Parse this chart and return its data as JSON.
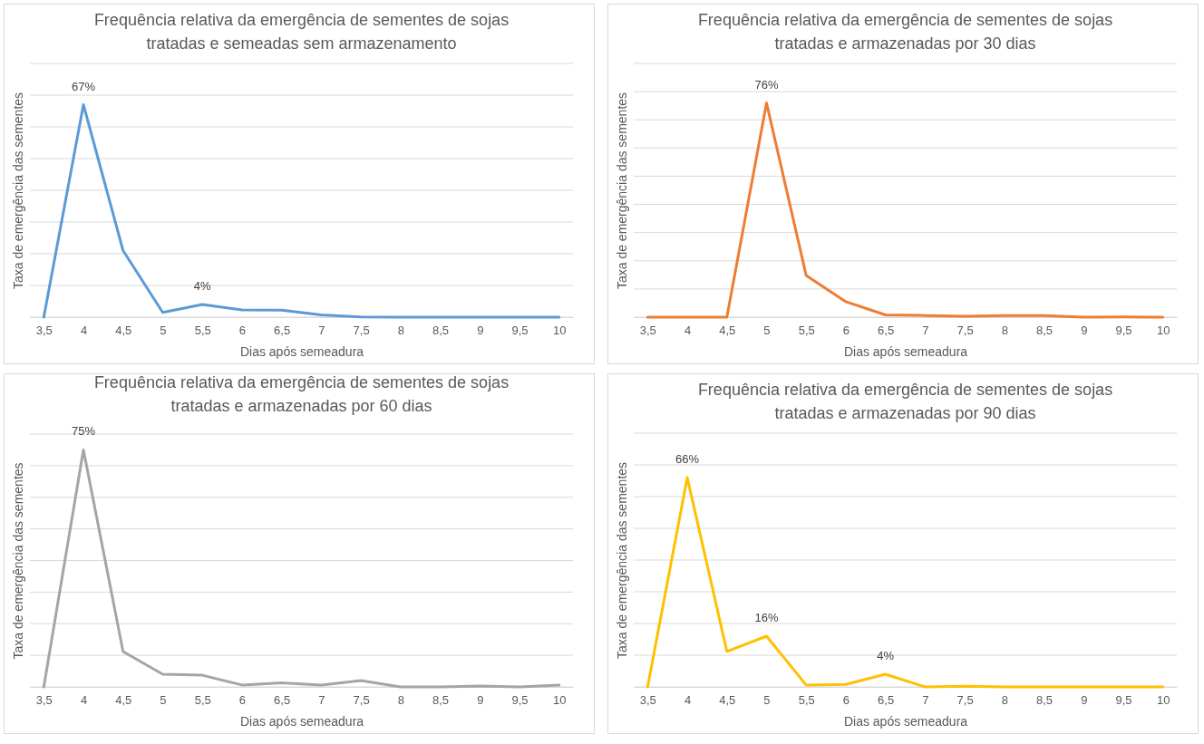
{
  "chart_data": [
    {
      "type": "line",
      "title": "Frequência relativa da emergência de sementes de sojas\ntratadas e semeadas sem armazenamento",
      "xlabel": "Dias após semeadura",
      "ylabel": "Taxa de emergência das sementes",
      "categories": [
        "3,5",
        "4",
        "4,5",
        "5",
        "5,5",
        "6",
        "6,5",
        "7",
        "7,5",
        "8",
        "8,5",
        "9",
        "9,5",
        "10"
      ],
      "ylim": [
        0,
        80
      ],
      "yticks": [
        {
          "value": 0,
          "label": null
        },
        {
          "value": 10,
          "label": null
        },
        {
          "value": 20,
          "label": null
        },
        {
          "value": 30,
          "label": null
        },
        {
          "value": 40,
          "label": null
        },
        {
          "value": 50,
          "label": null
        },
        {
          "value": 60,
          "label": null
        },
        {
          "value": 70,
          "label": null
        },
        {
          "value": 80,
          "label": null
        }
      ],
      "tick_labels": "x",
      "grid": "y",
      "series": [
        {
          "color": "#5b9bd5",
          "values": [
            0,
            67,
            21,
            1.5,
            4,
            2.3,
            2.2,
            0.7,
            0.1,
            0,
            0,
            0,
            0,
            0
          ],
          "value_labels": [
            null,
            "67%",
            null,
            null,
            "4%",
            null,
            null,
            null,
            null,
            null,
            null,
            null,
            null,
            null
          ]
        }
      ]
    },
    {
      "type": "line",
      "title": "Frequência relativa da emergência de sementes de sojas\ntratadas e armazenadas por 30 dias",
      "xlabel": "Dias após semeadura",
      "ylabel": "Taxa de emergência das sementes",
      "categories": [
        "3,5",
        "4",
        "4,5",
        "5",
        "5,5",
        "6",
        "6,5",
        "7",
        "7,5",
        "8",
        "8,5",
        "9",
        "9,5",
        "10"
      ],
      "ylim": [
        0,
        90
      ],
      "yticks": [
        {
          "value": 0,
          "label": null
        },
        {
          "value": 10,
          "label": null
        },
        {
          "value": 20,
          "label": null
        },
        {
          "value": 30,
          "label": null
        },
        {
          "value": 40,
          "label": null
        },
        {
          "value": 50,
          "label": null
        },
        {
          "value": 60,
          "label": null
        },
        {
          "value": 70,
          "label": null
        },
        {
          "value": 80,
          "label": null
        },
        {
          "value": 90,
          "label": null
        }
      ],
      "tick_labels": "x",
      "grid": "y",
      "series": [
        {
          "color": "#ed7d31",
          "values": [
            0,
            0,
            0,
            76,
            14.8,
            5.5,
            0.8,
            0.6,
            0.3,
            0.6,
            0.6,
            0,
            0.1,
            0
          ],
          "value_labels": [
            null,
            null,
            null,
            "76%",
            null,
            null,
            null,
            null,
            null,
            null,
            null,
            null,
            null,
            null
          ]
        }
      ]
    },
    {
      "type": "line",
      "title": "Frequência relativa da emergência de sementes de sojas\ntratadas e armazenadas por 60 dias",
      "xlabel": "Dias após semeadura",
      "ylabel": "Taxa de emergência das sementes",
      "categories": [
        "3,5",
        "4",
        "4,5",
        "5",
        "5,5",
        "6",
        "6,5",
        "7",
        "7,5",
        "8",
        "8,5",
        "9",
        "9,5",
        "10"
      ],
      "ylim": [
        0,
        80
      ],
      "yticks": [
        {
          "value": 0,
          "label": null
        },
        {
          "value": 10,
          "label": null
        },
        {
          "value": 20,
          "label": null
        },
        {
          "value": 30,
          "label": null
        },
        {
          "value": 40,
          "label": null
        },
        {
          "value": 50,
          "label": null
        },
        {
          "value": 60,
          "label": null
        },
        {
          "value": 70,
          "label": null
        },
        {
          "value": 80,
          "label": null
        }
      ],
      "tick_labels": "x",
      "grid": "y",
      "series": [
        {
          "color": "#a5a5a5",
          "values": [
            0,
            75,
            11.2,
            4,
            3.7,
            0.6,
            1.3,
            0.6,
            2,
            0,
            0,
            0.3,
            0,
            0.6
          ],
          "value_labels": [
            null,
            "75%",
            null,
            null,
            null,
            null,
            null,
            null,
            null,
            null,
            null,
            null,
            null,
            null
          ]
        }
      ]
    },
    {
      "type": "line",
      "title": "Frequência relativa da emergência de sementes de sojas\ntratadas e armazenadas por 90 dias",
      "xlabel": "Dias após semeadura",
      "ylabel": "Taxa de emergência das sementes",
      "categories": [
        "3,5",
        "4",
        "4,5",
        "5",
        "5,5",
        "6",
        "6,5",
        "7",
        "7,5",
        "8",
        "8,5",
        "9",
        "9,5",
        "10"
      ],
      "ylim": [
        0,
        80
      ],
      "yticks": [
        {
          "value": 0,
          "label": null
        },
        {
          "value": 10,
          "label": null
        },
        {
          "value": 20,
          "label": null
        },
        {
          "value": 30,
          "label": null
        },
        {
          "value": 40,
          "label": null
        },
        {
          "value": 50,
          "label": null
        },
        {
          "value": 60,
          "label": null
        },
        {
          "value": 70,
          "label": null
        },
        {
          "value": 80,
          "label": null
        }
      ],
      "tick_labels": "x",
      "grid": "y",
      "series": [
        {
          "color": "#ffc000",
          "values": [
            0,
            66,
            11.2,
            16,
            0.6,
            0.8,
            4,
            0,
            0.2,
            0,
            0,
            0,
            0,
            0
          ],
          "value_labels": [
            null,
            "66%",
            null,
            "16%",
            null,
            null,
            "4%",
            null,
            null,
            null,
            null,
            null,
            null,
            null
          ]
        }
      ]
    }
  ]
}
